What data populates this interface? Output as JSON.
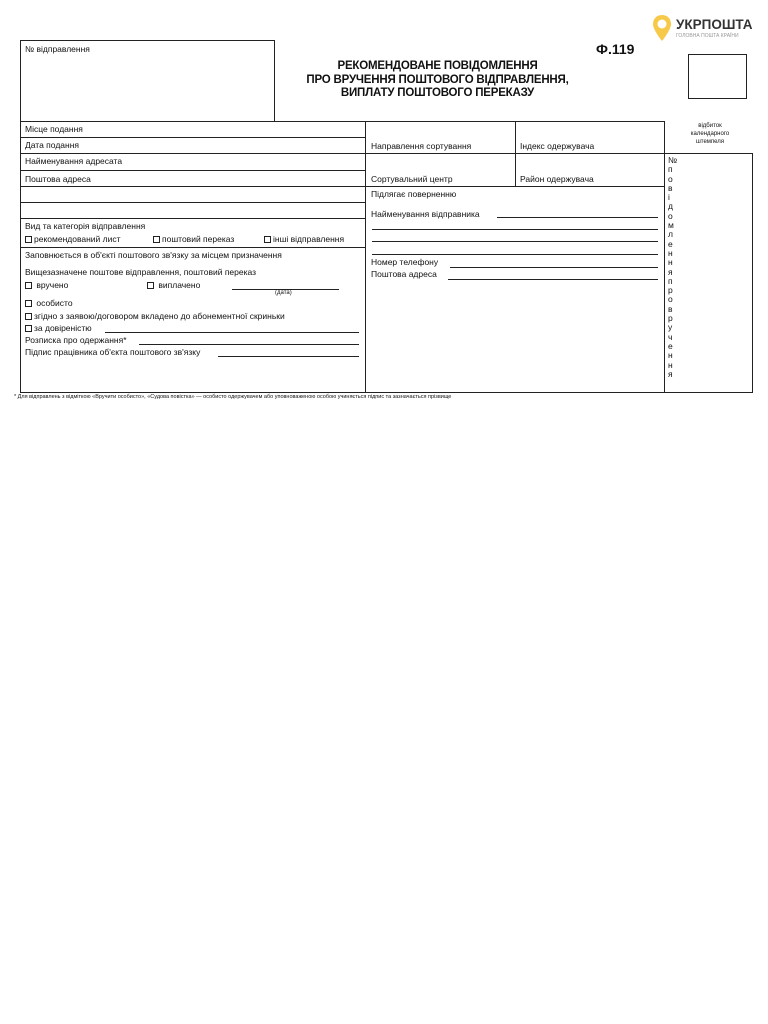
{
  "logo": {
    "brand": "УКРПОШТА",
    "tagline": "ГОЛОВНА ПОШТА КРАЇНИ",
    "accent": "#f7c948"
  },
  "form_number": "Ф.119",
  "shipment_no_label": "№ відправлення",
  "title": [
    "РЕКОМЕНДОВАНЕ ПОВІДОМЛЕННЯ",
    "ПРО ВРУЧЕННЯ ПОШТОВОГО ВІДПРАВЛЕННЯ,",
    "ВИПЛАТУ ПОШТОВОГО ПЕРЕКАЗУ"
  ],
  "stamp_label": [
    "відбиток",
    "календарного",
    "штемпеля"
  ],
  "left": {
    "place": "Місце подання",
    "date": "Дата подання",
    "addressee": "Найменування адресата",
    "address": "Поштова адреса",
    "category_label": "Вид та категорія відправлення",
    "categories": [
      "рекомендований лист",
      "поштовий переказ",
      "інші відправлення"
    ],
    "dest_label": "Заповнюється в об'єкті поштового зв'язку за місцем призначення",
    "above_label": "Вищезазначене поштове відправлення, поштовий переказ",
    "delivered": "вручено",
    "paid": "виплачено",
    "date_caption": "(дата)",
    "personally": "особисто",
    "mailbox": "згідно з заявою/договором вкладено до абонементної скриньки",
    "proxy": "за довіреністю",
    "receipt": "Розписка про одержання*",
    "signature": "Підпис працівника об'єкта поштового зв'язку"
  },
  "middle": {
    "sort_direction": "Направлення сортування",
    "recipient_index": "Індекс одержувача",
    "sort_center": "Сортувальний центр",
    "recipient_district": "Район одержувача",
    "return": "Підлягає поверненню",
    "sender_name": "Найменування  відправника",
    "phone": "Номер телефону",
    "sender_address": "Поштова адреса"
  },
  "vertical_label": [
    "№",
    "п",
    "о",
    "в",
    "і",
    "д",
    "о",
    "м",
    "л",
    "е",
    "н",
    "н",
    "я",
    "п",
    "р",
    "о",
    "в",
    "р",
    "у",
    "ч",
    "е",
    "н",
    "н",
    "я"
  ],
  "footnote": "* Для відправлень з відміткою «Вручити особисто», «Судова повістка» — особисто одержувачем або уповноваженою особою учиняється підпис та зазначається прізвище"
}
